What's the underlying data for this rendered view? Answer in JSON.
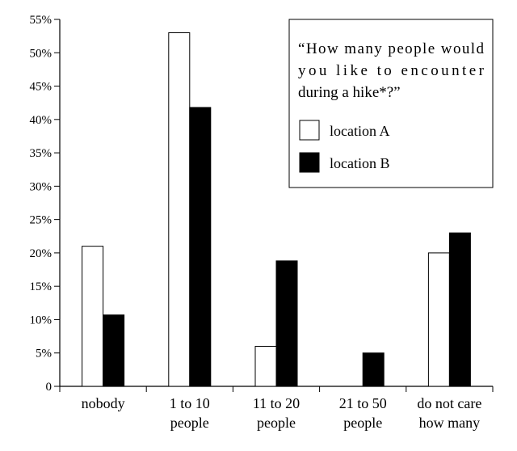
{
  "chart_data": {
    "type": "bar",
    "title": "",
    "xlabel": "",
    "ylabel": "",
    "ylim": [
      0,
      55
    ],
    "yticks": [
      0,
      5,
      10,
      15,
      20,
      25,
      30,
      35,
      40,
      45,
      50,
      55
    ],
    "ytick_labels": [
      "0",
      "5%",
      "10%",
      "15%",
      "20%",
      "25%",
      "30%",
      "35%",
      "40%",
      "45%",
      "50%",
      "55%"
    ],
    "grid": false,
    "categories": [
      [
        "nobody"
      ],
      [
        "1 to 10",
        "people"
      ],
      [
        "11 to 20",
        "people"
      ],
      [
        "21 to 50",
        "people"
      ],
      [
        "do not care",
        "how many"
      ]
    ],
    "series": [
      {
        "name": "location A",
        "color": "#ffffff",
        "values": [
          21,
          53,
          6,
          0,
          20
        ]
      },
      {
        "name": "location B",
        "color": "#000000",
        "values": [
          10.7,
          41.8,
          18.8,
          5,
          23
        ]
      }
    ],
    "legend": {
      "title_lines": [
        "“How many people would",
        "you like to encounter",
        "during a hike*?”"
      ],
      "placement": "top-right"
    }
  }
}
